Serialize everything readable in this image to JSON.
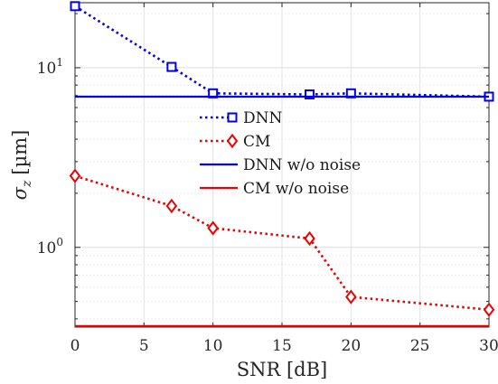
{
  "chart_data": {
    "type": "line",
    "xlabel": "SNR [dB]",
    "ylabel": "σz [µm]",
    "ylabel_base": "σ",
    "ylabel_sub": "z",
    "ylabel_unit": "[µm]",
    "x_scale": "linear",
    "y_scale": "log",
    "xlim": [
      0,
      30
    ],
    "ylim": [
      0.36,
      23
    ],
    "x_ticks": [
      "0",
      "5",
      "10",
      "15",
      "20",
      "25",
      "30"
    ],
    "y_ticks": [
      {
        "base": "10",
        "exponent": "1"
      },
      {
        "base": "10",
        "exponent": "0"
      }
    ],
    "grid": true,
    "legend_position": "center",
    "series": [
      {
        "name": "DNN",
        "color": "#0000ee",
        "style": "dotted",
        "marker": "square",
        "x": [
          0,
          7,
          10,
          17,
          20,
          30
        ],
        "y": [
          22,
          10.1,
          7.2,
          7.1,
          7.2,
          6.9
        ]
      },
      {
        "name": "CM",
        "color": "#ee0000",
        "style": "dotted",
        "marker": "diamond",
        "x": [
          0,
          7,
          10,
          17,
          20,
          30
        ],
        "y": [
          2.5,
          1.7,
          1.28,
          1.12,
          0.53,
          0.45
        ]
      },
      {
        "name": "DNN w/o noise",
        "color": "#0000ee",
        "style": "solid",
        "marker": "none",
        "x": [
          0,
          30
        ],
        "y": [
          6.9,
          6.9
        ]
      },
      {
        "name": "CM w/o noise",
        "color": "#ee0000",
        "style": "solid",
        "marker": "none",
        "x": [
          0,
          30
        ],
        "y": [
          0.365,
          0.365
        ]
      }
    ]
  }
}
